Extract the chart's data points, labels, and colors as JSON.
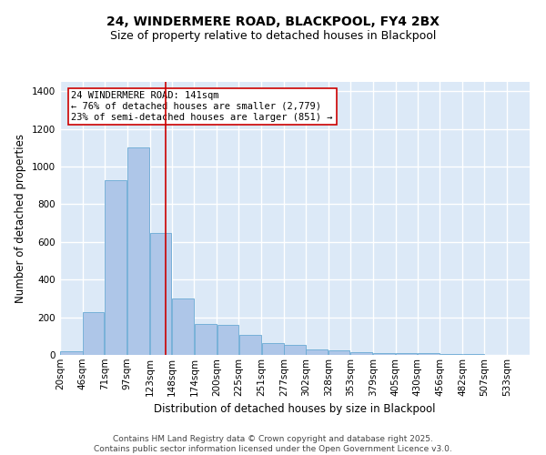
{
  "title": "24, WINDERMERE ROAD, BLACKPOOL, FY4 2BX",
  "subtitle": "Size of property relative to detached houses in Blackpool",
  "xlabel": "Distribution of detached houses by size in Blackpool",
  "ylabel": "Number of detached properties",
  "footnote": "Contains HM Land Registry data © Crown copyright and database right 2025.\nContains public sector information licensed under the Open Government Licence v3.0.",
  "bar_color": "#aec6e8",
  "bar_edge_color": "#6aaad4",
  "background_color": "#dce9f7",
  "grid_color": "#ffffff",
  "annotation_box_color": "#cc0000",
  "annotation_text": "24 WINDERMERE ROAD: 141sqm\n← 76% of detached houses are smaller (2,779)\n23% of semi-detached houses are larger (851) →",
  "vline_x": 141,
  "vline_color": "#cc0000",
  "categories": [
    "20sqm",
    "46sqm",
    "71sqm",
    "97sqm",
    "123sqm",
    "148sqm",
    "174sqm",
    "200sqm",
    "225sqm",
    "251sqm",
    "277sqm",
    "302sqm",
    "328sqm",
    "353sqm",
    "379sqm",
    "405sqm",
    "430sqm",
    "456sqm",
    "482sqm",
    "507sqm",
    "533sqm"
  ],
  "bin_edges": [
    20,
    46,
    71,
    97,
    123,
    148,
    174,
    200,
    225,
    251,
    277,
    302,
    328,
    353,
    379,
    405,
    430,
    456,
    482,
    507,
    533,
    559
  ],
  "values": [
    20,
    225,
    930,
    1100,
    650,
    300,
    165,
    160,
    105,
    65,
    55,
    30,
    25,
    15,
    10,
    10,
    10,
    5,
    5,
    2,
    2
  ],
  "ylim": [
    0,
    1450
  ],
  "yticks": [
    0,
    200,
    400,
    600,
    800,
    1000,
    1200,
    1400
  ],
  "title_fontsize": 10,
  "subtitle_fontsize": 9,
  "label_fontsize": 8.5,
  "tick_fontsize": 7.5,
  "annotation_fontsize": 7.5,
  "footnote_fontsize": 6.5
}
